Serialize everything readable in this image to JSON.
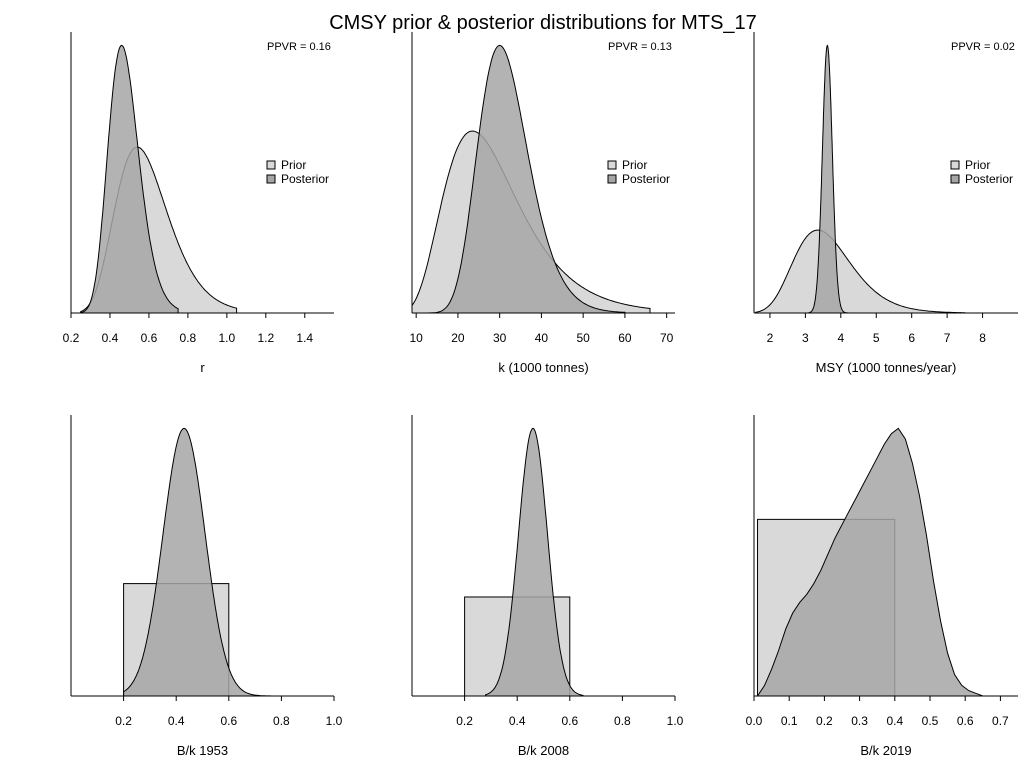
{
  "figure": {
    "title": "CMSY prior & posterior distributions for MTS_17",
    "colors": {
      "prior": "#d9d9d9",
      "posterior": "#a6a6a6",
      "overlap": "#999999",
      "line": "#000000"
    }
  },
  "chart_data": [
    {
      "type": "area",
      "id": "r",
      "xlabel": "r",
      "xlim": [
        0.2,
        1.55
      ],
      "ticks": [
        0.2,
        0.4,
        0.6,
        0.8,
        1.0,
        1.2,
        1.4
      ],
      "tick_labels": [
        "0.2",
        "0.4",
        "0.6",
        "0.8",
        "1.0",
        "1.2",
        "1.4"
      ],
      "ylim": [
        0,
        1.05
      ],
      "ppvr": "PPVR = 0.16",
      "legend": [
        "Prior",
        "Posterior"
      ],
      "series": [
        {
          "name": "Prior",
          "kind": "lognormal",
          "mode": 0.54,
          "sigma": 0.25,
          "height": 0.62,
          "range": [
            0.25,
            1.05
          ]
        },
        {
          "name": "Posterior",
          "kind": "lognormal",
          "mode": 0.46,
          "sigma": 0.17,
          "height": 1.0,
          "range": [
            0.25,
            0.75
          ]
        }
      ]
    },
    {
      "type": "area",
      "id": "k",
      "xlabel": "k (1000 tonnes)",
      "xlim": [
        9,
        72
      ],
      "ticks": [
        10,
        20,
        30,
        40,
        50,
        60,
        70
      ],
      "tick_labels": [
        "10",
        "20",
        "30",
        "40",
        "50",
        "60",
        "70"
      ],
      "ylim": [
        0,
        1.05
      ],
      "ppvr": "PPVR = 0.13",
      "legend": [
        "Prior",
        "Posterior"
      ],
      "series": [
        {
          "name": "Prior",
          "kind": "lognormal",
          "mode": 23.5,
          "sigma": 0.38,
          "height": 0.68,
          "range": [
            9,
            66
          ]
        },
        {
          "name": "Posterior",
          "kind": "lognormal",
          "mode": 30.0,
          "sigma": 0.2,
          "height": 1.0,
          "range": [
            11,
            60
          ]
        }
      ]
    },
    {
      "type": "area",
      "id": "msy",
      "xlabel": "MSY (1000 tonnes/year)",
      "xlim": [
        1.55,
        9.0
      ],
      "ticks": [
        2,
        3,
        4,
        5,
        6,
        7,
        8
      ],
      "tick_labels": [
        "2",
        "3",
        "4",
        "5",
        "6",
        "7",
        "8"
      ],
      "ylim": [
        0,
        1.05
      ],
      "ppvr": "PPVR = 0.02",
      "legend": [
        "Prior",
        "Posterior"
      ],
      "series": [
        {
          "name": "Prior",
          "kind": "lognormal",
          "mode": 3.35,
          "sigma": 0.24,
          "height": 0.31,
          "range": [
            1.6,
            7.5
          ]
        },
        {
          "name": "Posterior",
          "kind": "normal",
          "mode": 3.62,
          "sd": 0.14,
          "height": 1.0,
          "range": [
            3.1,
            4.2
          ]
        }
      ]
    },
    {
      "type": "area",
      "id": "bk1953",
      "xlabel": "B/k 1953",
      "xlim": [
        0.0,
        1.0
      ],
      "ticks": [
        0.2,
        0.4,
        0.6,
        0.8,
        1.0
      ],
      "tick_labels": [
        "0.2",
        "0.4",
        "0.6",
        "0.8",
        "1.0"
      ],
      "ylim": [
        0,
        1.05
      ],
      "series": [
        {
          "name": "Prior",
          "kind": "uniform",
          "lo": 0.2,
          "hi": 0.6,
          "height": 0.42
        },
        {
          "name": "Posterior",
          "kind": "normal",
          "mode": 0.43,
          "sd": 0.08,
          "height": 1.0,
          "range": [
            0.2,
            0.78
          ]
        }
      ]
    },
    {
      "type": "area",
      "id": "bk2008",
      "xlabel": "B/k 2008",
      "xlim": [
        0.0,
        1.0
      ],
      "ticks": [
        0.2,
        0.4,
        0.6,
        0.8,
        1.0
      ],
      "tick_labels": [
        "0.2",
        "0.4",
        "0.6",
        "0.8",
        "1.0"
      ],
      "ylim": [
        0,
        1.05
      ],
      "series": [
        {
          "name": "Prior",
          "kind": "uniform",
          "lo": 0.2,
          "hi": 0.6,
          "height": 0.37
        },
        {
          "name": "Posterior",
          "kind": "normal",
          "mode": 0.46,
          "sd": 0.055,
          "height": 1.0,
          "range": [
            0.28,
            0.65
          ]
        }
      ]
    },
    {
      "type": "area",
      "id": "bk2019",
      "xlabel": "B/k 2019",
      "xlim": [
        0.0,
        0.75
      ],
      "ticks": [
        0.0,
        0.1,
        0.2,
        0.3,
        0.4,
        0.5,
        0.6,
        0.7
      ],
      "tick_labels": [
        "0.0",
        "0.1",
        "0.2",
        "0.3",
        "0.4",
        "0.5",
        "0.6",
        "0.7"
      ],
      "ylim": [
        0,
        1.05
      ],
      "series": [
        {
          "name": "Prior",
          "kind": "uniform",
          "lo": 0.01,
          "hi": 0.4,
          "height": 0.66
        },
        {
          "name": "Posterior",
          "kind": "points",
          "x": [
            0.01,
            0.03,
            0.05,
            0.07,
            0.09,
            0.11,
            0.13,
            0.15,
            0.17,
            0.19,
            0.21,
            0.23,
            0.25,
            0.27,
            0.29,
            0.31,
            0.33,
            0.35,
            0.37,
            0.39,
            0.41,
            0.43,
            0.45,
            0.47,
            0.49,
            0.51,
            0.53,
            0.55,
            0.57,
            0.59,
            0.61,
            0.63,
            0.65
          ],
          "y": [
            0.0,
            0.04,
            0.1,
            0.17,
            0.25,
            0.31,
            0.35,
            0.38,
            0.42,
            0.47,
            0.53,
            0.59,
            0.64,
            0.69,
            0.74,
            0.79,
            0.84,
            0.89,
            0.94,
            0.98,
            1.0,
            0.96,
            0.87,
            0.75,
            0.6,
            0.43,
            0.28,
            0.16,
            0.08,
            0.04,
            0.02,
            0.01,
            0.0
          ]
        }
      ]
    }
  ]
}
